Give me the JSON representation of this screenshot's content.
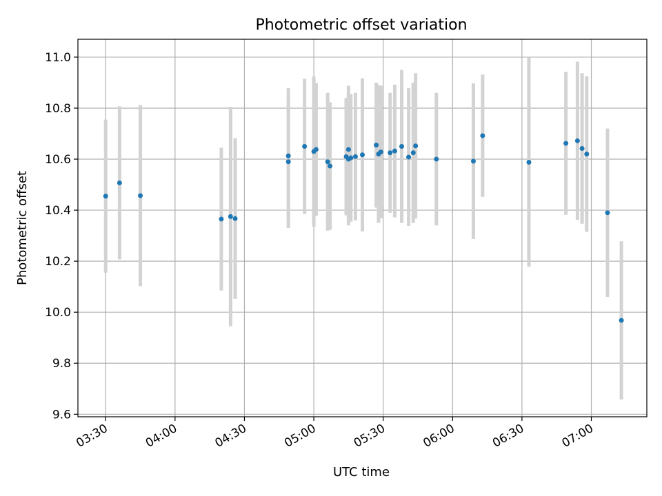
{
  "chart_data": {
    "type": "scatter",
    "title": "Photometric offset variation",
    "xlabel": "UTC time",
    "ylabel": "Photometric offset",
    "x_tick_labels": [
      "03:30",
      "04:00",
      "04:30",
      "05:00",
      "05:30",
      "06:00",
      "06:30",
      "07:00"
    ],
    "y_tick_labels": [
      "9.6",
      "9.8",
      "10.0",
      "10.2",
      "10.4",
      "10.6",
      "10.8",
      "11.0"
    ],
    "xlim": [
      "03:18",
      "07:24"
    ],
    "ylim": [
      9.59,
      11.07
    ],
    "grid": true,
    "legend": "none",
    "colors": {
      "points": "#1f77b4",
      "error_bars": "#d3d3d3",
      "grid": "#b0b0b0"
    },
    "points": [
      {
        "x": "03:30",
        "y": 10.455,
        "err": 0.3
      },
      {
        "x": "03:36",
        "y": 10.507,
        "err": 0.3
      },
      {
        "x": "03:45",
        "y": 10.457,
        "err": 0.355
      },
      {
        "x": "04:20",
        "y": 10.365,
        "err": 0.28
      },
      {
        "x": "04:24",
        "y": 10.375,
        "err": 0.43
      },
      {
        "x": "04:26",
        "y": 10.367,
        "err": 0.315
      },
      {
        "x": "04:49",
        "y": 10.59,
        "err": 0.26
      },
      {
        "x": "04:49",
        "y": 10.613,
        "err": 0.265
      },
      {
        "x": "04:56",
        "y": 10.65,
        "err": 0.265
      },
      {
        "x": "05:00",
        "y": 10.63,
        "err": 0.295
      },
      {
        "x": "05:01",
        "y": 10.638,
        "err": 0.26
      },
      {
        "x": "05:06",
        "y": 10.59,
        "err": 0.27
      },
      {
        "x": "05:07",
        "y": 10.573,
        "err": 0.25
      },
      {
        "x": "05:14",
        "y": 10.61,
        "err": 0.23
      },
      {
        "x": "05:15",
        "y": 10.6,
        "err": 0.26
      },
      {
        "x": "05:15",
        "y": 10.638,
        "err": 0.25
      },
      {
        "x": "05:16",
        "y": 10.605,
        "err": 0.25
      },
      {
        "x": "05:18",
        "y": 10.61,
        "err": 0.25
      },
      {
        "x": "05:21",
        "y": 10.617,
        "err": 0.3
      },
      {
        "x": "05:27",
        "y": 10.655,
        "err": 0.245
      },
      {
        "x": "05:28",
        "y": 10.62,
        "err": 0.27
      },
      {
        "x": "05:29",
        "y": 10.628,
        "err": 0.26
      },
      {
        "x": "05:33",
        "y": 10.625,
        "err": 0.235
      },
      {
        "x": "05:35",
        "y": 10.632,
        "err": 0.26
      },
      {
        "x": "05:38",
        "y": 10.65,
        "err": 0.3
      },
      {
        "x": "05:41",
        "y": 10.608,
        "err": 0.27
      },
      {
        "x": "05:43",
        "y": 10.625,
        "err": 0.275
      },
      {
        "x": "05:44",
        "y": 10.652,
        "err": 0.285
      },
      {
        "x": "05:53",
        "y": 10.6,
        "err": 0.26
      },
      {
        "x": "06:09",
        "y": 10.592,
        "err": 0.305
      },
      {
        "x": "06:13",
        "y": 10.692,
        "err": 0.24
      },
      {
        "x": "06:33",
        "y": 10.588,
        "err": 0.41
      },
      {
        "x": "06:49",
        "y": 10.662,
        "err": 0.28
      },
      {
        "x": "06:54",
        "y": 10.672,
        "err": 0.31
      },
      {
        "x": "06:56",
        "y": 10.642,
        "err": 0.295
      },
      {
        "x": "06:58",
        "y": 10.62,
        "err": 0.305
      },
      {
        "x": "07:07",
        "y": 10.39,
        "err": 0.33
      },
      {
        "x": "07:13",
        "y": 9.968,
        "err": 0.31
      }
    ]
  }
}
